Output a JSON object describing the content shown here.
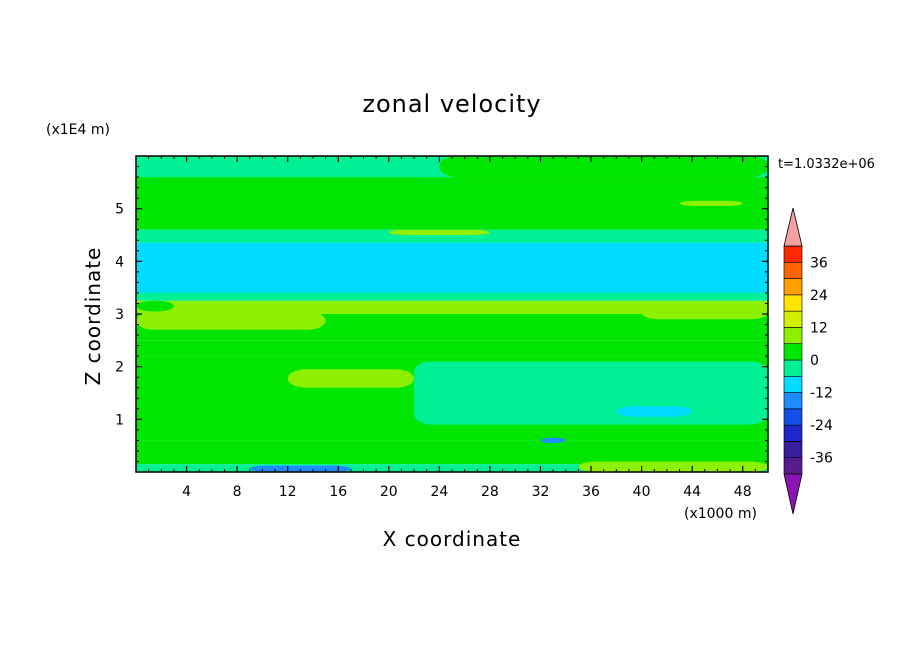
{
  "chart_data": {
    "type": "heatmap",
    "title": "zonal velocity",
    "xlabel": "X coordinate",
    "ylabel": "Z coordinate",
    "x_unit": "(x1000 m)",
    "y_unit": "(x1E4 m)",
    "time_label": "t=1.0332e+06",
    "xlim": [
      0,
      50
    ],
    "ylim": [
      0,
      6
    ],
    "x_ticks": [
      "4",
      "8",
      "12",
      "16",
      "20",
      "24",
      "28",
      "32",
      "36",
      "40",
      "44",
      "48"
    ],
    "y_ticks": [
      "1",
      "2",
      "3",
      "4",
      "5"
    ],
    "colorbar": {
      "levels": [
        -42,
        -36,
        -30,
        -24,
        -18,
        -12,
        -6,
        0,
        6,
        12,
        18,
        24,
        30,
        36,
        42
      ],
      "tick_labels": [
        "36",
        "24",
        "12",
        "0",
        "-12",
        "-24",
        "-36"
      ],
      "colors": [
        "#5a1c8c",
        "#3a1ea0",
        "#1e28c8",
        "#1450e6",
        "#1e8cff",
        "#00dcff",
        "#00f096",
        "#00e600",
        "#8cf000",
        "#d2f000",
        "#ffe600",
        "#ffa000",
        "#ff6400",
        "#ff2800",
        "#e61e1e",
        "#f5a0a0"
      ],
      "under_color": "#8c14b4",
      "over_color": "#f5a0a0"
    },
    "bands": [
      {
        "z": [
          5.6,
          6.0
        ],
        "value": -3
      },
      {
        "z": [
          4.6,
          5.6
        ],
        "value": 2
      },
      {
        "z": [
          4.35,
          4.6
        ],
        "value": -4
      },
      {
        "z": [
          3.4,
          4.35
        ],
        "value": -10
      },
      {
        "z": [
          3.25,
          3.4
        ],
        "value": -4
      },
      {
        "z": [
          3.0,
          3.25
        ],
        "value": 7
      },
      {
        "z": [
          2.5,
          3.0
        ],
        "value": 4
      },
      {
        "z": [
          2.2,
          2.5
        ],
        "value": 1
      },
      {
        "z": [
          0.6,
          2.2
        ],
        "value": 4
      },
      {
        "z": [
          0.15,
          0.6
        ],
        "value": 1
      },
      {
        "z": [
          0.0,
          0.15
        ],
        "value": -5
      }
    ],
    "patches": [
      {
        "x": [
          0,
          24
        ],
        "z": [
          5.6,
          6.0
        ],
        "value": -3
      },
      {
        "x": [
          24,
          50
        ],
        "z": [
          5.6,
          6.0
        ],
        "value": 2
      },
      {
        "x": [
          0,
          15
        ],
        "z": [
          2.7,
          3.05
        ],
        "value": 7
      },
      {
        "x": [
          40,
          50
        ],
        "z": [
          2.9,
          3.15
        ],
        "value": 7
      },
      {
        "x": [
          22,
          50
        ],
        "z": [
          0.9,
          2.1
        ],
        "value": -4
      },
      {
        "x": [
          12,
          22
        ],
        "z": [
          1.6,
          1.95
        ],
        "value": 9
      },
      {
        "x": [
          9,
          17
        ],
        "z": [
          0.0,
          0.12
        ],
        "value": -14
      },
      {
        "x": [
          35,
          50
        ],
        "z": [
          0.0,
          0.2
        ],
        "value": 8
      },
      {
        "x": [
          38,
          44
        ],
        "z": [
          1.05,
          1.25
        ],
        "value": -10
      },
      {
        "x": [
          32,
          34
        ],
        "z": [
          0.55,
          0.65
        ],
        "value": -14
      },
      {
        "x": [
          0,
          3
        ],
        "z": [
          3.05,
          3.25
        ],
        "value": 1
      },
      {
        "x": [
          20,
          28
        ],
        "z": [
          4.5,
          4.6
        ],
        "value": 6
      },
      {
        "x": [
          43,
          48
        ],
        "z": [
          5.05,
          5.15
        ],
        "value": 6
      }
    ]
  }
}
